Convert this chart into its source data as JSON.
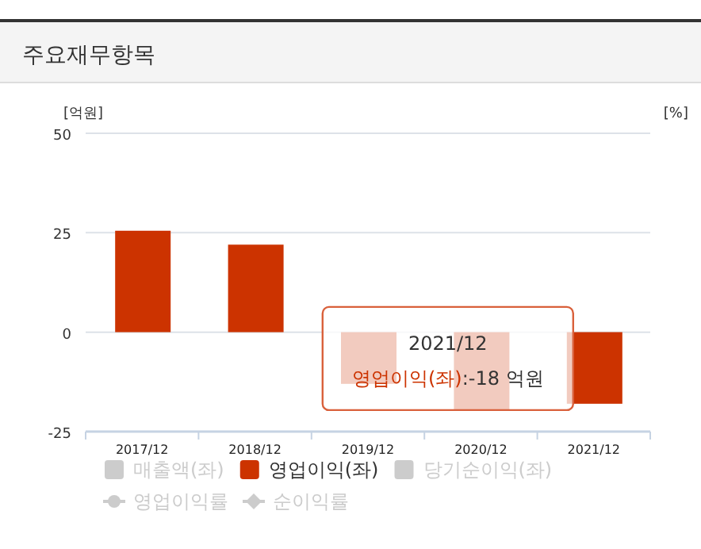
{
  "chart_data": {
    "type": "bar",
    "title": "주요재무항목",
    "ylabel": "[억원]",
    "y2label": "[%]",
    "categories": [
      "2017/12",
      "2018/12",
      "2019/12",
      "2020/12",
      "2021/12"
    ],
    "ylim": [
      -25,
      50
    ],
    "yticks": [
      -25,
      0,
      25,
      50
    ],
    "grid": "y",
    "legend": "bottom",
    "series": [
      {
        "name": "매출액(좌)",
        "color": "#cccccc",
        "values": [
          null,
          null,
          null,
          null,
          null
        ]
      },
      {
        "name": "영업이익(좌)",
        "color": "#cc3300",
        "values": [
          25.5,
          22,
          -13,
          -19.5,
          -18
        ]
      },
      {
        "name": "당기순이익(좌)",
        "color": "#cccccc",
        "values": [
          null,
          null,
          null,
          null,
          null
        ]
      },
      {
        "name": "영업이익률",
        "type": "line",
        "marker": "circle",
        "color": "#cccccc",
        "values": [
          null,
          null,
          null,
          null,
          null
        ]
      },
      {
        "name": "순이익률",
        "type": "line",
        "marker": "diamond",
        "color": "#cccccc",
        "values": [
          null,
          null,
          null,
          null,
          null
        ]
      }
    ],
    "annotations": [
      "2021/12",
      {
        "text": "영업이익(좌):-18 억원",
        "x": "2021/12",
        "y": -18
      }
    ]
  }
}
